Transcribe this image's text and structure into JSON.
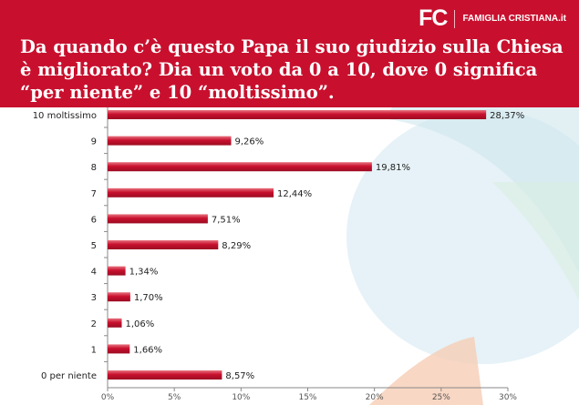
{
  "header": {
    "logo_mark": "FC",
    "logo_text": "FAMIGLIA CRISTIANA.it",
    "question": "Da quando c’è questo Papa il suo giudizio sulla Chiesa è migliorato? Dia un voto da 0 a 10, dove 0 significa “per niente” e 10 “moltissimo”."
  },
  "colors": {
    "brand": "#c8102e",
    "bar": "#c8102e"
  },
  "chart_data": {
    "type": "bar",
    "orientation": "horizontal",
    "title": "",
    "xlabel": "",
    "ylabel": "",
    "xlim": [
      0,
      30
    ],
    "x_ticks": [
      "0%",
      "5%",
      "10%",
      "15%",
      "20%",
      "25%",
      "30%"
    ],
    "grid": false,
    "categories": [
      "10 moltissimo",
      "9",
      "8",
      "7",
      "6",
      "5",
      "4",
      "3",
      "2",
      "1",
      "0 per niente"
    ],
    "values": [
      28.37,
      9.26,
      19.81,
      12.44,
      7.51,
      8.29,
      1.34,
      1.7,
      1.06,
      1.66,
      8.57
    ],
    "value_labels": [
      "28,37%",
      "9,26%",
      "19,81%",
      "12,44%",
      "7,51%",
      "8,29%",
      "1,34%",
      "1,70%",
      "1,06%",
      "1,66%",
      "8,57%"
    ]
  }
}
